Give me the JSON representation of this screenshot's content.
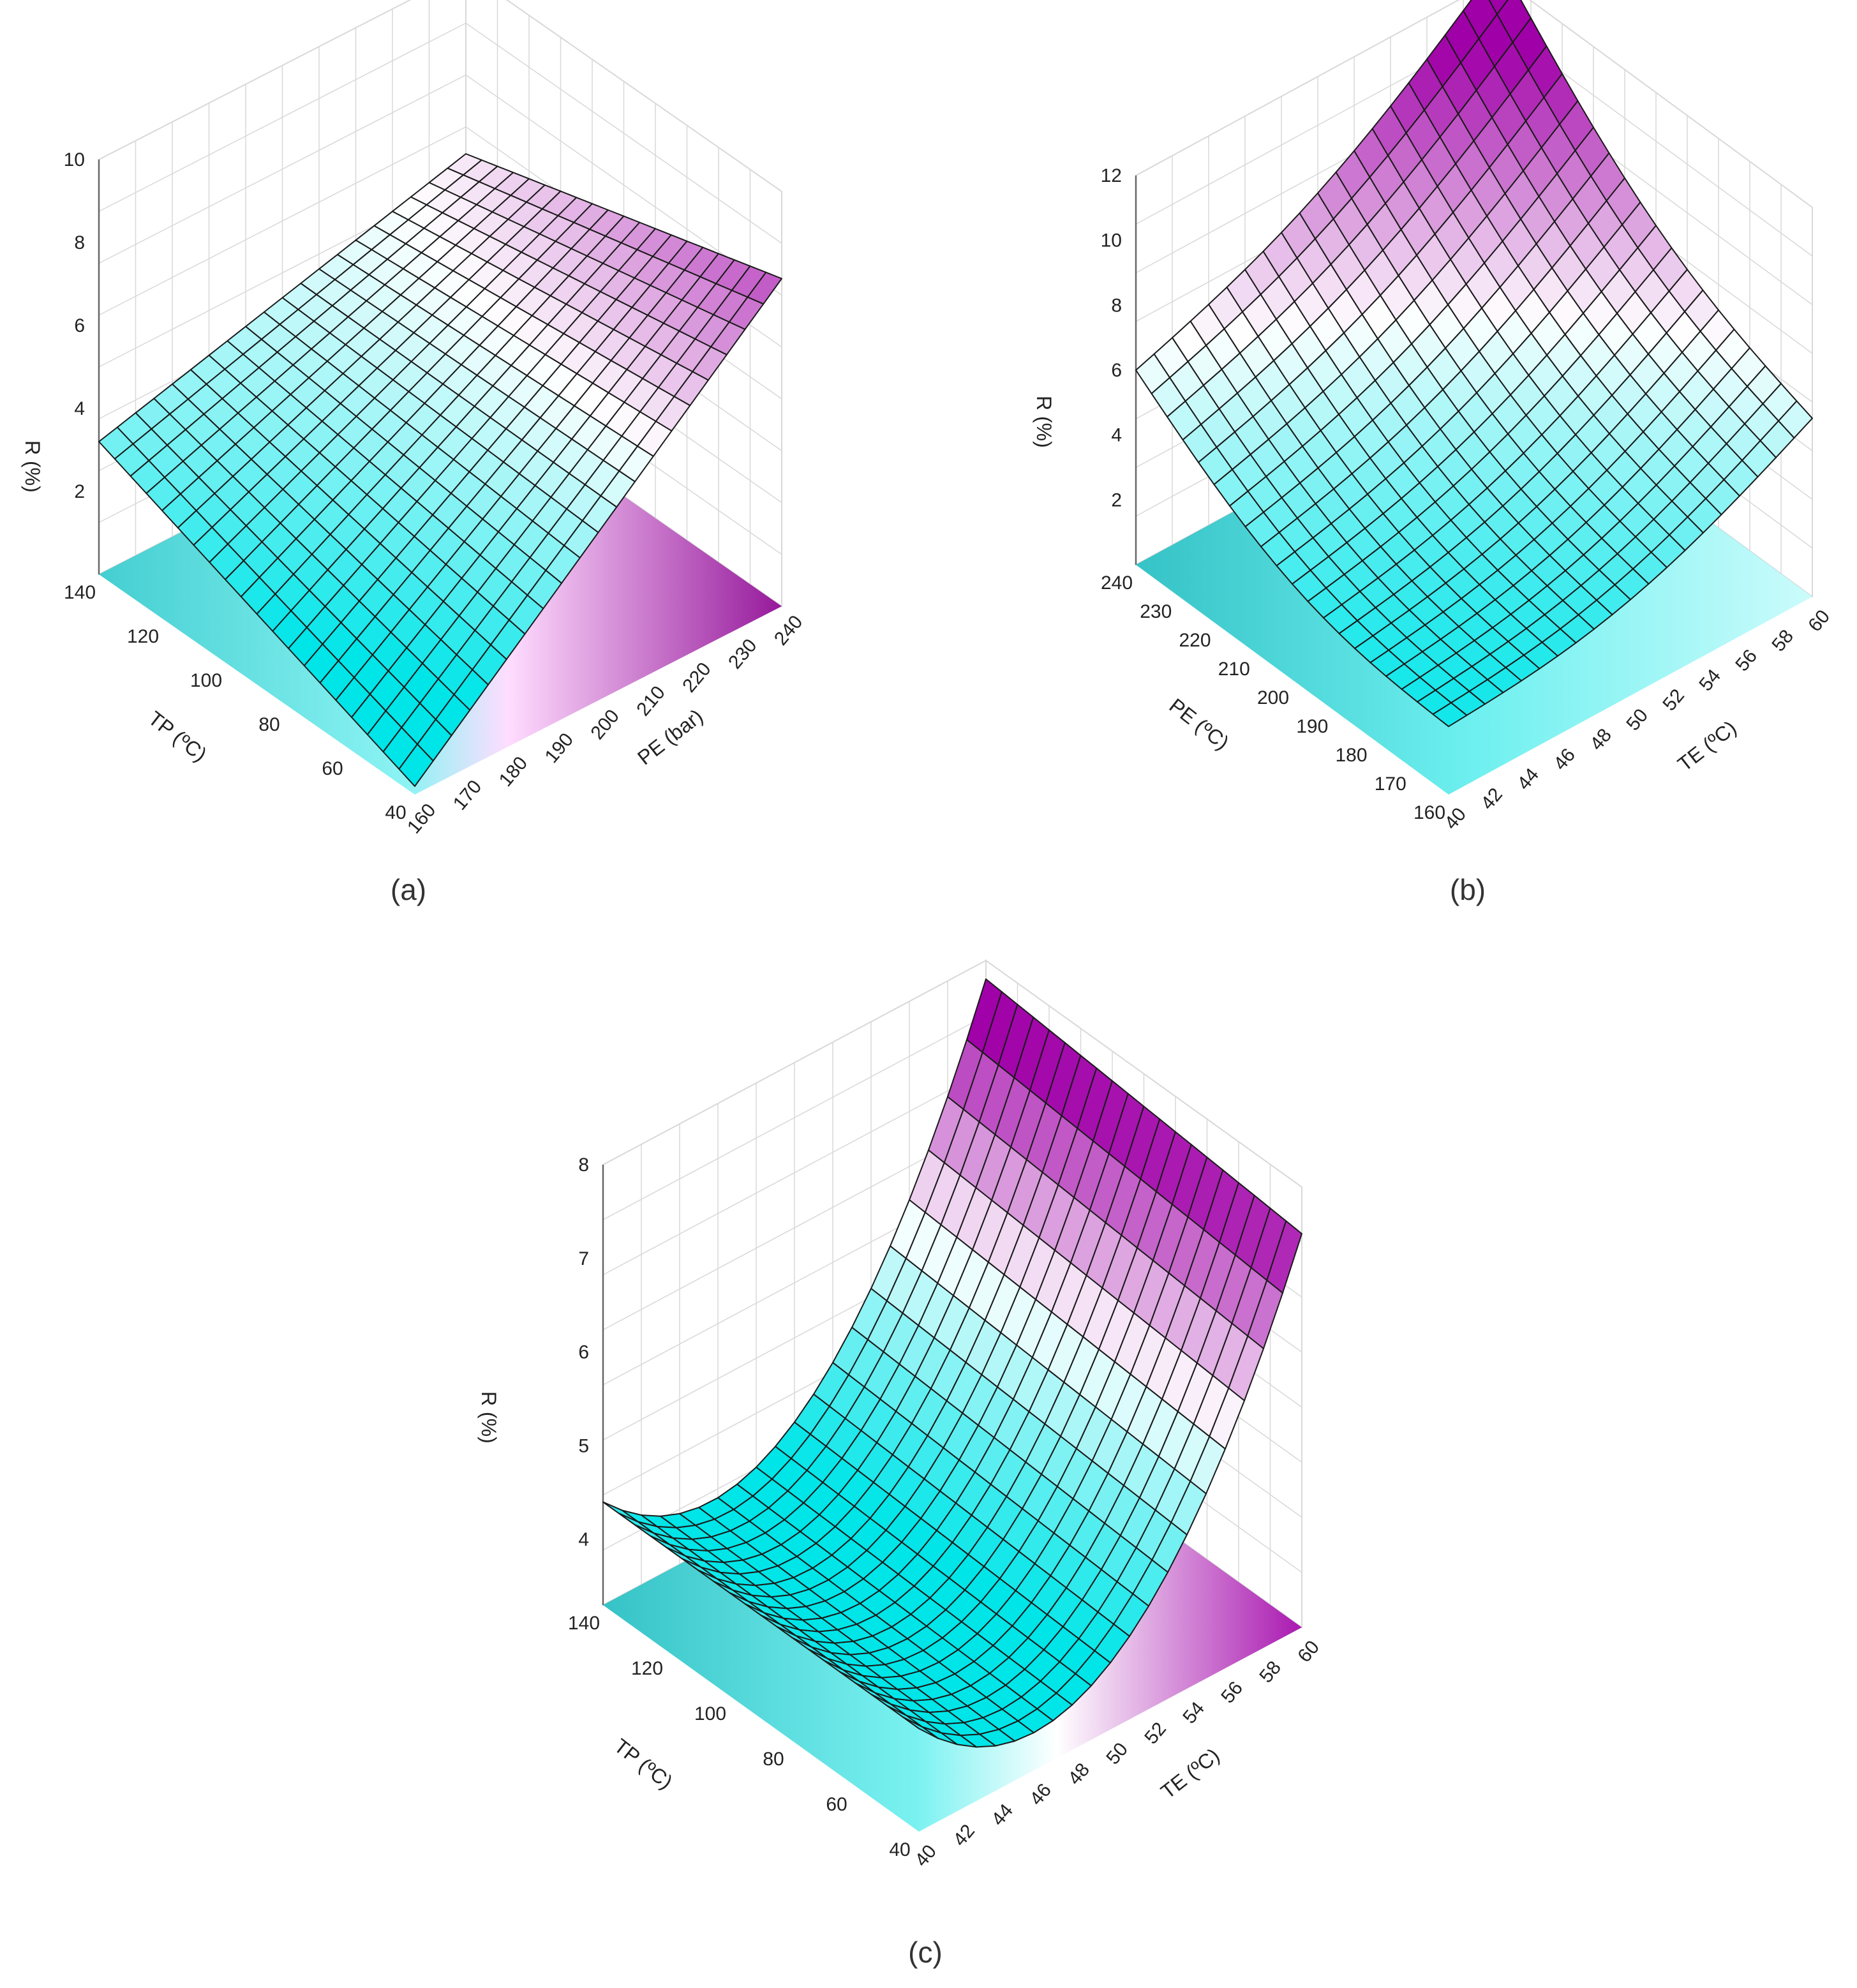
{
  "colors": {
    "low": "#00e5e8",
    "mid": "#ffffff",
    "high": "#a000a8",
    "grid": "#d8d8d8",
    "mesh": "#1a1a1a"
  },
  "chart_data": [
    {
      "type": "surface3d",
      "caption": "(a)",
      "x": {
        "label": "TP (ºC)",
        "ticks": [
          "40",
          "60",
          "80",
          "100",
          "120",
          "140"
        ],
        "range": [
          40,
          140
        ]
      },
      "y": {
        "label": "PE (bar)",
        "ticks": [
          "160",
          "170",
          "180",
          "190",
          "200",
          "210",
          "220",
          "230",
          "240"
        ],
        "range": [
          160,
          240
        ]
      },
      "z": {
        "label": "R (%)",
        "ticks": [
          "2",
          "4",
          "6",
          "8",
          "10"
        ],
        "range": [
          0,
          10
        ]
      },
      "corner_values": {
        "x40_y160": 0.2,
        "x140_y160": 3.2,
        "x40_y240": 7.9,
        "x140_y240": 5.6
      },
      "grid": true
    },
    {
      "type": "surface3d",
      "caption": "(b)",
      "x": {
        "label": "PE (ºC)",
        "ticks": [
          "160",
          "170",
          "180",
          "190",
          "200",
          "210",
          "220",
          "230",
          "240"
        ],
        "range": [
          160,
          240
        ]
      },
      "y": {
        "label": "TE (ºC)",
        "ticks": [
          "40",
          "42",
          "44",
          "46",
          "48",
          "50",
          "52",
          "54",
          "56",
          "58",
          "60"
        ],
        "range": [
          40,
          60
        ]
      },
      "z": {
        "label": "R (%)",
        "ticks": [
          "2",
          "4",
          "6",
          "8",
          "10",
          "12"
        ],
        "range": [
          0,
          12
        ]
      },
      "corner_values": {
        "x160_y40": 2.1,
        "x240_y40": 6.0,
        "x160_y60": 5.5,
        "x240_y60": 12.5
      },
      "grid": true
    },
    {
      "type": "surface3d",
      "caption": "(c)",
      "x": {
        "label": "TP (ºC)",
        "ticks": [
          "40",
          "60",
          "80",
          "100",
          "120",
          "140"
        ],
        "range": [
          40,
          140
        ]
      },
      "y": {
        "label": "TE (ºC)",
        "ticks": [
          "40",
          "42",
          "44",
          "46",
          "48",
          "50",
          "52",
          "54",
          "56",
          "58",
          "60"
        ],
        "range": [
          40,
          60
        ]
      },
      "z": {
        "label": "R (%)",
        "ticks": [
          "4",
          "5",
          "6",
          "7",
          "8"
        ],
        "range": [
          3.3,
          8
        ]
      },
      "corner_values": {
        "x40_y40": 4.4,
        "x140_y40": 4.4,
        "x40_y60": 7.3,
        "x140_y60": 7.6,
        "min_at_y": 46
      },
      "grid": true
    }
  ]
}
